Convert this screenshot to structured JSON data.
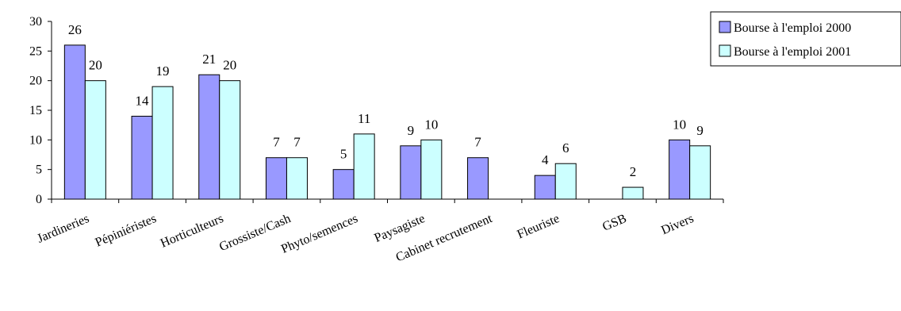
{
  "chart_data": {
    "type": "bar",
    "title": "",
    "xlabel": "",
    "ylabel": "",
    "ylim": [
      0,
      30
    ],
    "yticks": [
      0,
      5,
      10,
      15,
      20,
      25,
      30
    ],
    "grid": false,
    "legend_position": "top-right",
    "categories": [
      "Jardineries",
      "Pépiniéristes",
      "Horticulteurs",
      "Grossiste/Cash",
      "Phyto/semences",
      "Paysagiste",
      "Cabinet recrutement",
      "Fleuriste",
      "GSB",
      "Divers"
    ],
    "series": [
      {
        "name": "Bourse à l'emploi 2000",
        "color": "#9999ff",
        "values": [
          26,
          14,
          21,
          7,
          5,
          9,
          7,
          4,
          null,
          10
        ]
      },
      {
        "name": "Bourse à l'emploi 2001",
        "color": "#ccffff",
        "values": [
          20,
          19,
          20,
          7,
          11,
          10,
          null,
          6,
          2,
          9
        ]
      }
    ]
  }
}
